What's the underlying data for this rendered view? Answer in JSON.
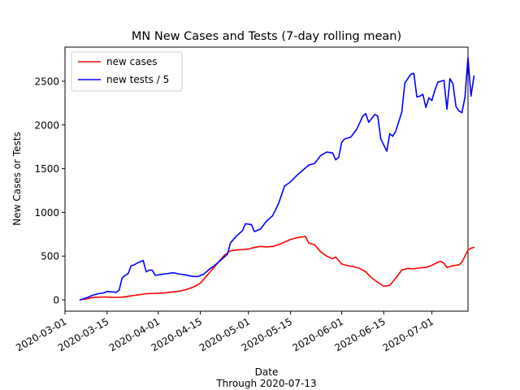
{
  "chart_data": {
    "type": "line",
    "title": "MN New Cases and Tests (7-day rolling mean)",
    "xlabel": "Date",
    "xlabel_sub": "Through 2020-07-13",
    "ylabel": "New Cases or Tests",
    "xlim": [
      "2020-03-01",
      "2020-07-13"
    ],
    "ylim": [
      -130,
      2890
    ],
    "x_ticks": [
      "2020-03-01",
      "2020-03-15",
      "2020-04-01",
      "2020-04-15",
      "2020-05-01",
      "2020-05-15",
      "2020-06-01",
      "2020-06-15",
      "2020-07-01"
    ],
    "y_ticks": [
      0,
      500,
      1000,
      1500,
      2000,
      2500
    ],
    "grid": false,
    "legend_position": "top-left",
    "series": [
      {
        "name": "new cases",
        "color": "#ff0000",
        "points": [
          [
            "2020-03-06",
            0
          ],
          [
            "2020-03-08",
            10
          ],
          [
            "2020-03-10",
            25
          ],
          [
            "2020-03-12",
            30
          ],
          [
            "2020-03-14",
            32
          ],
          [
            "2020-03-16",
            30
          ],
          [
            "2020-03-18",
            28
          ],
          [
            "2020-03-20",
            30
          ],
          [
            "2020-03-22",
            40
          ],
          [
            "2020-03-24",
            50
          ],
          [
            "2020-03-26",
            60
          ],
          [
            "2020-03-28",
            70
          ],
          [
            "2020-03-30",
            72
          ],
          [
            "2020-04-01",
            75
          ],
          [
            "2020-04-03",
            80
          ],
          [
            "2020-04-05",
            88
          ],
          [
            "2020-04-07",
            95
          ],
          [
            "2020-04-09",
            105
          ],
          [
            "2020-04-11",
            125
          ],
          [
            "2020-04-13",
            150
          ],
          [
            "2020-04-15",
            190
          ],
          [
            "2020-04-17",
            270
          ],
          [
            "2020-04-19",
            350
          ],
          [
            "2020-04-21",
            430
          ],
          [
            "2020-04-23",
            510
          ],
          [
            "2020-04-25",
            560
          ],
          [
            "2020-04-27",
            570
          ],
          [
            "2020-04-29",
            575
          ],
          [
            "2020-05-01",
            580
          ],
          [
            "2020-05-03",
            600
          ],
          [
            "2020-05-05",
            610
          ],
          [
            "2020-05-07",
            605
          ],
          [
            "2020-05-09",
            610
          ],
          [
            "2020-05-11",
            630
          ],
          [
            "2020-05-13",
            660
          ],
          [
            "2020-05-15",
            690
          ],
          [
            "2020-05-17",
            710
          ],
          [
            "2020-05-19",
            720
          ],
          [
            "2020-05-20",
            725
          ],
          [
            "2020-05-21",
            650
          ],
          [
            "2020-05-23",
            630
          ],
          [
            "2020-05-25",
            550
          ],
          [
            "2020-05-27",
            500
          ],
          [
            "2020-05-29",
            470
          ],
          [
            "2020-05-30",
            490
          ],
          [
            "2020-06-01",
            410
          ],
          [
            "2020-06-03",
            390
          ],
          [
            "2020-06-05",
            380
          ],
          [
            "2020-06-07",
            360
          ],
          [
            "2020-06-09",
            320
          ],
          [
            "2020-06-11",
            250
          ],
          [
            "2020-06-13",
            200
          ],
          [
            "2020-06-15",
            155
          ],
          [
            "2020-06-17",
            165
          ],
          [
            "2020-06-19",
            250
          ],
          [
            "2020-06-21",
            340
          ],
          [
            "2020-06-23",
            360
          ],
          [
            "2020-06-25",
            355
          ],
          [
            "2020-06-27",
            365
          ],
          [
            "2020-06-29",
            370
          ],
          [
            "2020-07-01",
            395
          ],
          [
            "2020-07-03",
            430
          ],
          [
            "2020-07-04",
            440
          ],
          [
            "2020-07-05",
            420
          ],
          [
            "2020-07-06",
            370
          ],
          [
            "2020-07-08",
            390
          ],
          [
            "2020-07-10",
            400
          ],
          [
            "2020-07-11",
            430
          ],
          [
            "2020-07-12",
            500
          ],
          [
            "2020-07-13",
            570
          ],
          [
            "2020-07-14",
            590
          ],
          [
            "2020-07-15",
            600
          ]
        ]
      },
      {
        "name": "new tests / 5",
        "color": "#0000ff",
        "points": [
          [
            "2020-03-06",
            0
          ],
          [
            "2020-03-08",
            20
          ],
          [
            "2020-03-10",
            50
          ],
          [
            "2020-03-12",
            70
          ],
          [
            "2020-03-14",
            80
          ],
          [
            "2020-03-15",
            95
          ],
          [
            "2020-03-17",
            90
          ],
          [
            "2020-03-18",
            85
          ],
          [
            "2020-03-19",
            110
          ],
          [
            "2020-03-20",
            250
          ],
          [
            "2020-03-21",
            280
          ],
          [
            "2020-03-22",
            300
          ],
          [
            "2020-03-23",
            390
          ],
          [
            "2020-03-24",
            400
          ],
          [
            "2020-03-25",
            420
          ],
          [
            "2020-03-27",
            450
          ],
          [
            "2020-03-28",
            320
          ],
          [
            "2020-03-29",
            340
          ],
          [
            "2020-03-30",
            340
          ],
          [
            "2020-03-31",
            280
          ],
          [
            "2020-04-02",
            290
          ],
          [
            "2020-04-04",
            300
          ],
          [
            "2020-04-06",
            310
          ],
          [
            "2020-04-08",
            295
          ],
          [
            "2020-04-10",
            285
          ],
          [
            "2020-04-12",
            270
          ],
          [
            "2020-04-14",
            265
          ],
          [
            "2020-04-16",
            290
          ],
          [
            "2020-04-18",
            350
          ],
          [
            "2020-04-20",
            400
          ],
          [
            "2020-04-22",
            460
          ],
          [
            "2020-04-24",
            520
          ],
          [
            "2020-04-25",
            650
          ],
          [
            "2020-04-27",
            730
          ],
          [
            "2020-04-29",
            790
          ],
          [
            "2020-04-30",
            870
          ],
          [
            "2020-05-02",
            860
          ],
          [
            "2020-05-03",
            780
          ],
          [
            "2020-05-05",
            810
          ],
          [
            "2020-05-07",
            900
          ],
          [
            "2020-05-09",
            960
          ],
          [
            "2020-05-11",
            1100
          ],
          [
            "2020-05-13",
            1300
          ],
          [
            "2020-05-15",
            1350
          ],
          [
            "2020-05-17",
            1420
          ],
          [
            "2020-05-19",
            1480
          ],
          [
            "2020-05-21",
            1540
          ],
          [
            "2020-05-23",
            1560
          ],
          [
            "2020-05-25",
            1650
          ],
          [
            "2020-05-27",
            1690
          ],
          [
            "2020-05-29",
            1680
          ],
          [
            "2020-05-30",
            1600
          ],
          [
            "2020-05-31",
            1630
          ],
          [
            "2020-06-01",
            1800
          ],
          [
            "2020-06-02",
            1840
          ],
          [
            "2020-06-04",
            1860
          ],
          [
            "2020-06-06",
            1950
          ],
          [
            "2020-06-08",
            2100
          ],
          [
            "2020-06-09",
            2130
          ],
          [
            "2020-06-10",
            2030
          ],
          [
            "2020-06-12",
            2120
          ],
          [
            "2020-06-13",
            2100
          ],
          [
            "2020-06-14",
            1840
          ],
          [
            "2020-06-16",
            1700
          ],
          [
            "2020-06-17",
            1900
          ],
          [
            "2020-06-18",
            1870
          ],
          [
            "2020-06-19",
            1930
          ],
          [
            "2020-06-21",
            2150
          ],
          [
            "2020-06-22",
            2480
          ],
          [
            "2020-06-24",
            2580
          ],
          [
            "2020-06-25",
            2590
          ],
          [
            "2020-06-26",
            2320
          ],
          [
            "2020-06-27",
            2330
          ],
          [
            "2020-06-28",
            2350
          ],
          [
            "2020-06-29",
            2200
          ],
          [
            "2020-06-30",
            2310
          ],
          [
            "2020-07-01",
            2280
          ],
          [
            "2020-07-02",
            2400
          ],
          [
            "2020-07-03",
            2490
          ],
          [
            "2020-07-04",
            2500
          ],
          [
            "2020-07-05",
            2510
          ],
          [
            "2020-07-06",
            2180
          ],
          [
            "2020-07-07",
            2530
          ],
          [
            "2020-07-08",
            2470
          ],
          [
            "2020-07-09",
            2210
          ],
          [
            "2020-07-10",
            2160
          ],
          [
            "2020-07-11",
            2140
          ],
          [
            "2020-07-12",
            2320
          ],
          [
            "2020-07-13",
            2770
          ],
          [
            "2020-07-14",
            2330
          ],
          [
            "2020-07-15",
            2560
          ]
        ]
      }
    ]
  }
}
